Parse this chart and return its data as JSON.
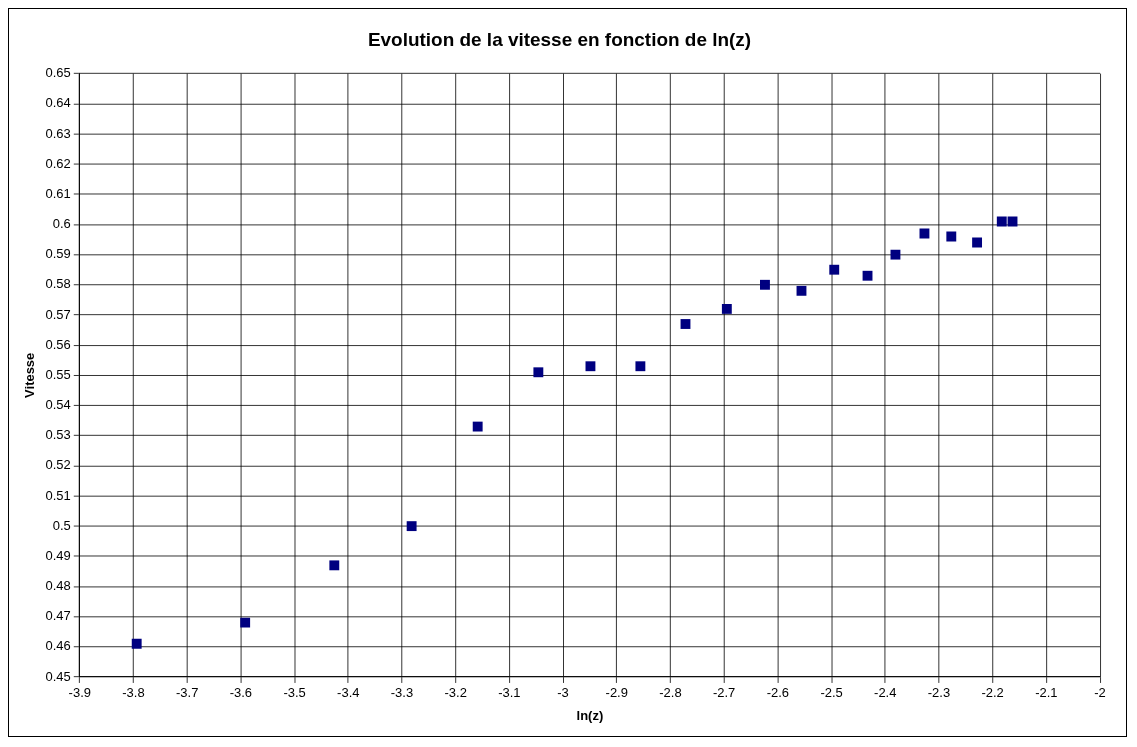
{
  "chart_data": {
    "type": "scatter",
    "title": "Evolution de la vitesse en fonction de ln(z)",
    "xlabel": "ln(z)",
    "ylabel": "Vitesse",
    "x": [
      -3.794,
      -3.592,
      -3.426,
      -3.282,
      -3.159,
      -3.046,
      -2.949,
      -2.856,
      -2.772,
      -2.695,
      -2.624,
      -2.556,
      -2.495,
      -2.433,
      -2.381,
      -2.327,
      -2.277,
      -2.229,
      -2.183,
      -2.163
    ],
    "series": [
      {
        "color": "#000080",
        "values": [
          0.461,
          0.468,
          0.487,
          0.5,
          0.533,
          0.551,
          0.553,
          0.553,
          0.567,
          0.572,
          0.58,
          0.578,
          0.585,
          0.583,
          0.59,
          0.597,
          0.596,
          0.594,
          0.601,
          0.601
        ]
      }
    ],
    "xlim": [
      -3.9,
      -2
    ],
    "xticks": [
      -3.9,
      -3.8,
      -3.7,
      -3.6,
      -3.5,
      -3.4,
      -3.3,
      -3.2,
      -3.1,
      -3,
      -2.9,
      -2.8,
      -2.7,
      -2.6,
      -2.5,
      -2.4,
      -2.3,
      -2.2,
      -2.1,
      -2
    ],
    "ylim": [
      0.45,
      0.65
    ],
    "yticks": [
      0.45,
      0.46,
      0.47,
      0.48,
      0.49,
      0.5,
      0.51,
      0.52,
      0.53,
      0.54,
      0.55,
      0.56,
      0.57,
      0.58,
      0.59,
      0.6,
      0.61,
      0.62,
      0.63,
      0.64,
      0.65
    ],
    "grid": true,
    "legend": false,
    "marker": "square"
  }
}
